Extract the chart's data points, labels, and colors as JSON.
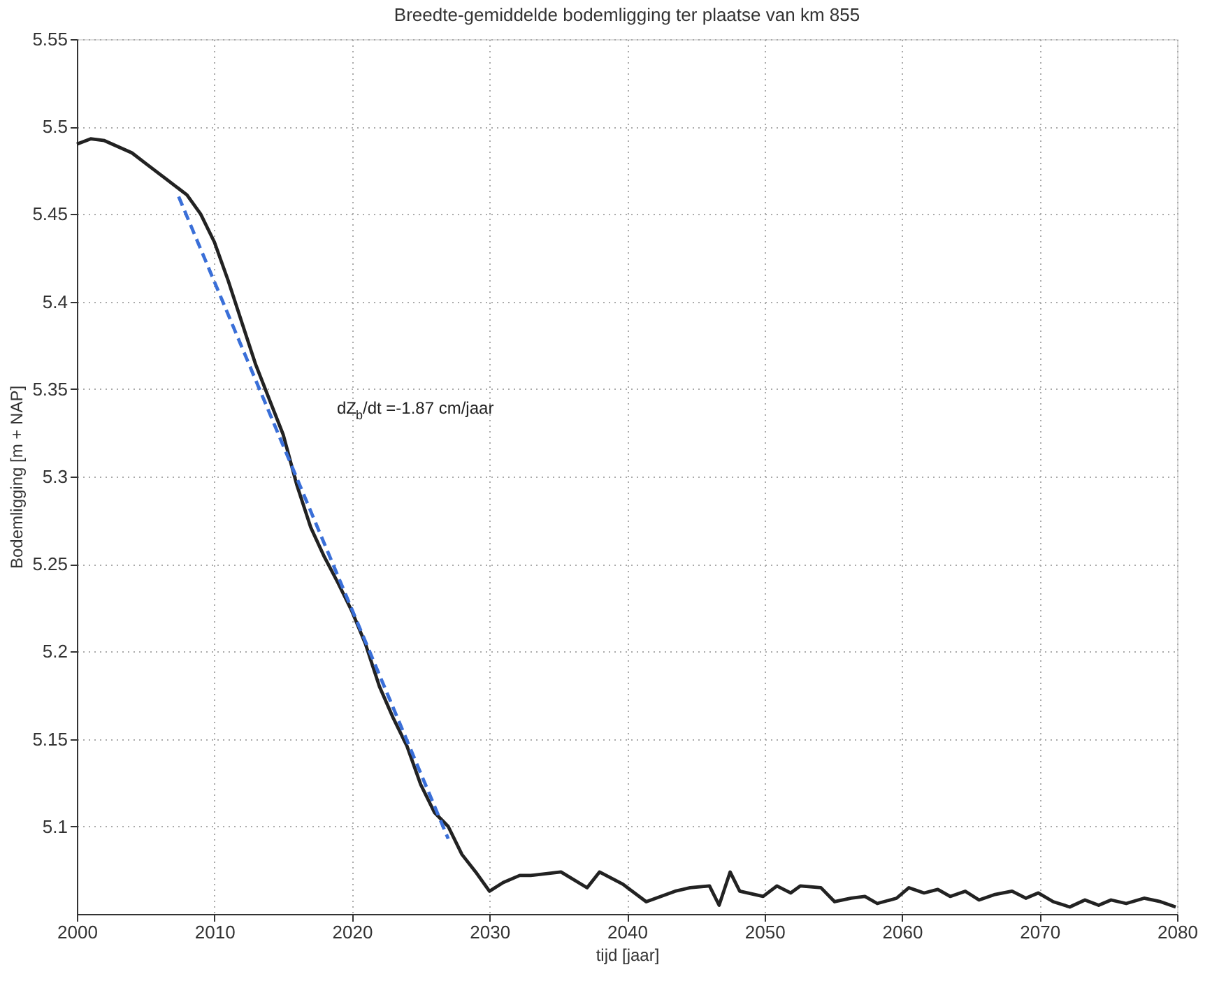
{
  "chart_data": {
    "type": "line",
    "title": "Breedte-gemiddelde bodemligging ter plaatse van km 855",
    "xlabel": "tijd [jaar]",
    "ylabel": "Bodemligging [m + NAP]",
    "xlim": [
      2000,
      2080
    ],
    "xticks": [
      2000,
      2010,
      2020,
      2030,
      2040,
      2050,
      2060,
      2070,
      2080
    ],
    "ylim": [
      5.05,
      5.55
    ],
    "yticks": [
      5.1,
      5.15,
      5.2,
      5.25,
      5.3,
      5.35,
      5.4,
      5.45,
      5.5,
      5.55
    ],
    "grid": true,
    "marker": "none",
    "annotations": [
      "dZ$_{b}$/dt =-1.87 cm/jaar"
    ],
    "series": [
      {
        "color": "#222222",
        "line_style": "solid",
        "x": [
          2000,
          2001,
          2002,
          2004,
          2005,
          2006,
          2008,
          2009,
          2010,
          2011,
          2012,
          2013,
          2014,
          2015,
          2016,
          2017,
          2018,
          2019,
          2020,
          2021,
          2022,
          2023,
          2024,
          2025,
          2026,
          2027,
          2028,
          2029,
          2030,
          2031,
          2032.2,
          2033,
          2035.2,
          2037.1,
          2038,
          2039.7,
          2041.4,
          2043.5,
          2044.6,
          2046,
          2046.7,
          2047.5,
          2048.2,
          2049.9,
          2050.9,
          2051.9,
          2052.6,
          2054.1,
          2055.1,
          2056.3,
          2057.3,
          2058.2,
          2059.6,
          2060.5,
          2061.6,
          2062.6,
          2063.5,
          2064.6,
          2065.6,
          2066.7,
          2068,
          2069,
          2069.9,
          2071,
          2072.2,
          2073.3,
          2074.3,
          2075.2,
          2076.3,
          2077.6,
          2078.8,
          2079.9
        ],
        "values": [
          5.49,
          5.493,
          5.492,
          5.485,
          5.479,
          5.473,
          5.461,
          5.45,
          5.434,
          5.412,
          5.388,
          5.364,
          5.344,
          5.324,
          5.295,
          5.271,
          5.254,
          5.239,
          5.223,
          5.204,
          5.18,
          5.162,
          5.146,
          5.124,
          5.108,
          5.1,
          5.084,
          5.074,
          5.063,
          5.068,
          5.072,
          5.072,
          5.074,
          5.065,
          5.074,
          5.067,
          5.057,
          5.063,
          5.065,
          5.066,
          5.055,
          5.074,
          5.063,
          5.06,
          5.066,
          5.062,
          5.066,
          5.065,
          5.057,
          5.059,
          5.06,
          5.056,
          5.059,
          5.065,
          5.062,
          5.064,
          5.06,
          5.063,
          5.058,
          5.061,
          5.063,
          5.059,
          5.062,
          5.057,
          5.054,
          5.058,
          5.055,
          5.058,
          5.056,
          5.059,
          5.057,
          5.054
        ]
      },
      {
        "color": "#3a6fd8",
        "line_style": "dashed",
        "x": [
          2007.4,
          2027
        ],
        "values": [
          5.46,
          5.093
        ]
      }
    ]
  }
}
